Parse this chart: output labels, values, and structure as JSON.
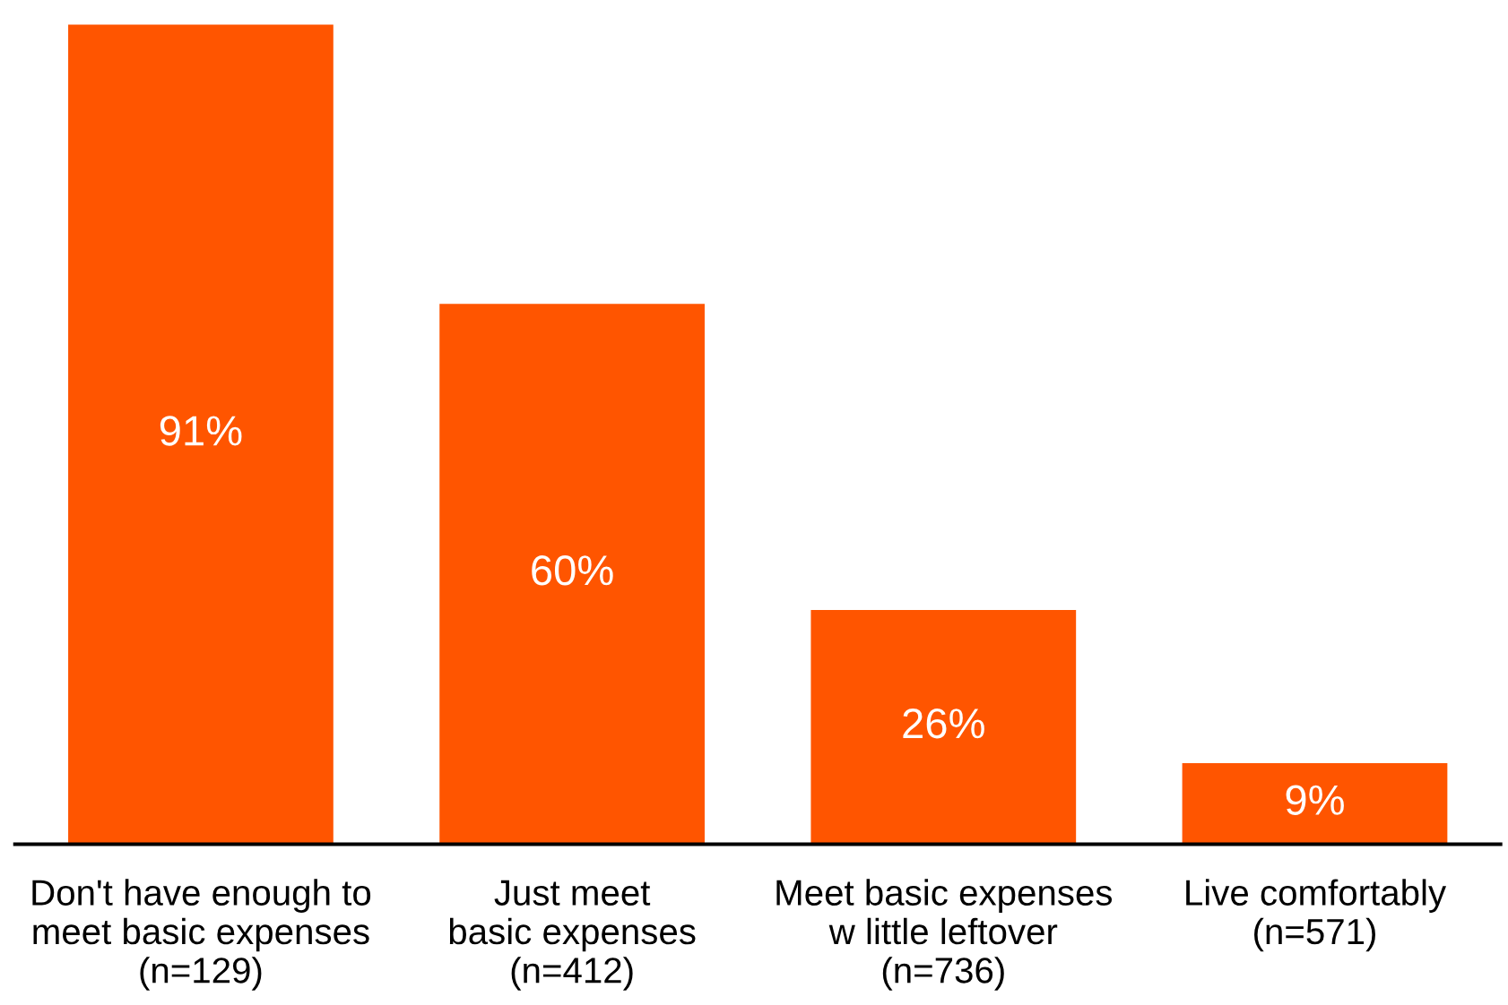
{
  "chart_data": {
    "type": "bar",
    "categories": [
      "Don't have enough to\nmeet basic expenses\n(n=129)",
      "Just meet\nbasic expenses\n(n=412)",
      "Meet basic expenses\nw little leftover\n(n=736)",
      "Live comfortably\n(n=571)"
    ],
    "values": [
      91,
      60,
      26,
      9
    ],
    "value_labels": [
      "91%",
      "60%",
      "26%",
      "9%"
    ],
    "color": "#ff5500"
  }
}
